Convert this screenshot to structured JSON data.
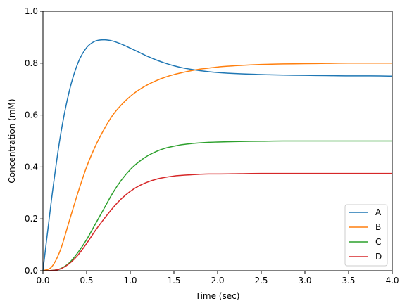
{
  "chart_data": {
    "type": "line",
    "xlabel": "Time (sec)",
    "ylabel": "Concentration (mM)",
    "xlim": [
      0,
      4
    ],
    "ylim": [
      0,
      1
    ],
    "grid": false,
    "legend_position": "bottom-right",
    "x_ticks": [
      "0.0",
      "0.5",
      "1.0",
      "1.5",
      "2.0",
      "2.5",
      "3.0",
      "3.5",
      "4.0"
    ],
    "y_ticks": [
      "0.0",
      "0.2",
      "0.4",
      "0.6",
      "0.8",
      "1.0"
    ],
    "x": [
      0,
      0.1,
      0.2,
      0.3,
      0.4,
      0.5,
      0.6,
      0.7,
      0.8,
      0.9,
      1.0,
      1.1,
      1.2,
      1.3,
      1.4,
      1.5,
      1.6,
      1.7,
      1.8,
      1.9,
      2.0,
      2.25,
      2.5,
      2.75,
      3.0,
      3.25,
      3.5,
      3.75,
      4.0
    ],
    "series": [
      {
        "name": "A",
        "color": "#1f77b4",
        "values": [
          0.0,
          0.28,
          0.52,
          0.69,
          0.8,
          0.86,
          0.885,
          0.89,
          0.885,
          0.873,
          0.858,
          0.842,
          0.826,
          0.812,
          0.8,
          0.79,
          0.782,
          0.776,
          0.771,
          0.767,
          0.764,
          0.759,
          0.756,
          0.754,
          0.753,
          0.752,
          0.751,
          0.751,
          0.75
        ]
      },
      {
        "name": "B",
        "color": "#ff7f0e",
        "values": [
          0.0,
          0.015,
          0.08,
          0.19,
          0.3,
          0.4,
          0.48,
          0.545,
          0.6,
          0.64,
          0.672,
          0.697,
          0.717,
          0.733,
          0.746,
          0.756,
          0.764,
          0.771,
          0.777,
          0.781,
          0.785,
          0.791,
          0.795,
          0.797,
          0.798,
          0.799,
          0.8,
          0.8,
          0.8
        ]
      },
      {
        "name": "C",
        "color": "#2ca02c",
        "values": [
          0.0,
          0.001,
          0.008,
          0.03,
          0.07,
          0.12,
          0.18,
          0.24,
          0.3,
          0.35,
          0.39,
          0.42,
          0.443,
          0.46,
          0.472,
          0.48,
          0.486,
          0.49,
          0.493,
          0.495,
          0.496,
          0.498,
          0.499,
          0.5,
          0.5,
          0.5,
          0.5,
          0.5,
          0.5
        ]
      },
      {
        "name": "D",
        "color": "#d62728",
        "values": [
          0.0,
          0.001,
          0.007,
          0.027,
          0.06,
          0.105,
          0.155,
          0.2,
          0.242,
          0.278,
          0.306,
          0.327,
          0.342,
          0.353,
          0.36,
          0.365,
          0.368,
          0.37,
          0.372,
          0.373,
          0.373,
          0.374,
          0.375,
          0.375,
          0.375,
          0.375,
          0.375,
          0.375,
          0.375
        ]
      }
    ]
  }
}
